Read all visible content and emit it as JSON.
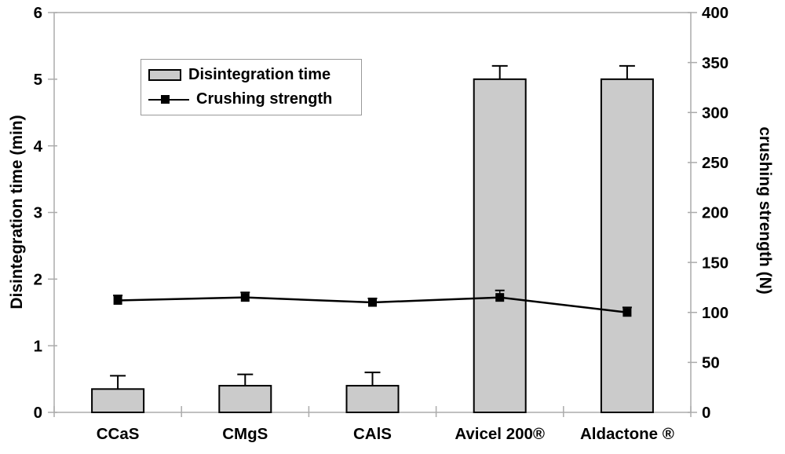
{
  "chart_data": {
    "type": "bar",
    "subtype": "bar-line-combo-dual-axis",
    "categories": [
      "CCaS",
      "CMgS",
      "CAlS",
      "Avicel 200®",
      "Aldactone ®"
    ],
    "series": [
      {
        "name": "Disintegration time",
        "type": "bar",
        "axis": "left",
        "values": [
          0.35,
          0.4,
          0.4,
          5.0,
          5.0
        ],
        "errors_plus": [
          0.2,
          0.17,
          0.2,
          0.2,
          0.2
        ],
        "fill": "#cbcbcb",
        "stroke": "#000000"
      },
      {
        "name": "Crushing strength",
        "type": "line",
        "axis": "right",
        "values": [
          112,
          115,
          110,
          115,
          100
        ],
        "errors_plus": [
          5,
          5,
          4,
          7,
          5
        ],
        "color": "#000000",
        "marker": "square"
      }
    ],
    "left_axis": {
      "label": "Disintegration time (min)",
      "min": 0,
      "max": 6,
      "step": 1,
      "ticks": [
        0,
        1,
        2,
        3,
        4,
        5,
        6
      ]
    },
    "right_axis": {
      "label": "crushing strength (N)",
      "min": 0,
      "max": 400,
      "step": 50,
      "ticks": [
        0,
        50,
        100,
        150,
        200,
        250,
        300,
        350,
        400
      ]
    },
    "legend": {
      "position": "top-left-inside"
    },
    "grid": false,
    "colors": {
      "background": "#ffffff",
      "axis": "#ababab",
      "bar_fill": "#cbcbcb",
      "series_line": "#000000",
      "text": "#000000"
    }
  }
}
